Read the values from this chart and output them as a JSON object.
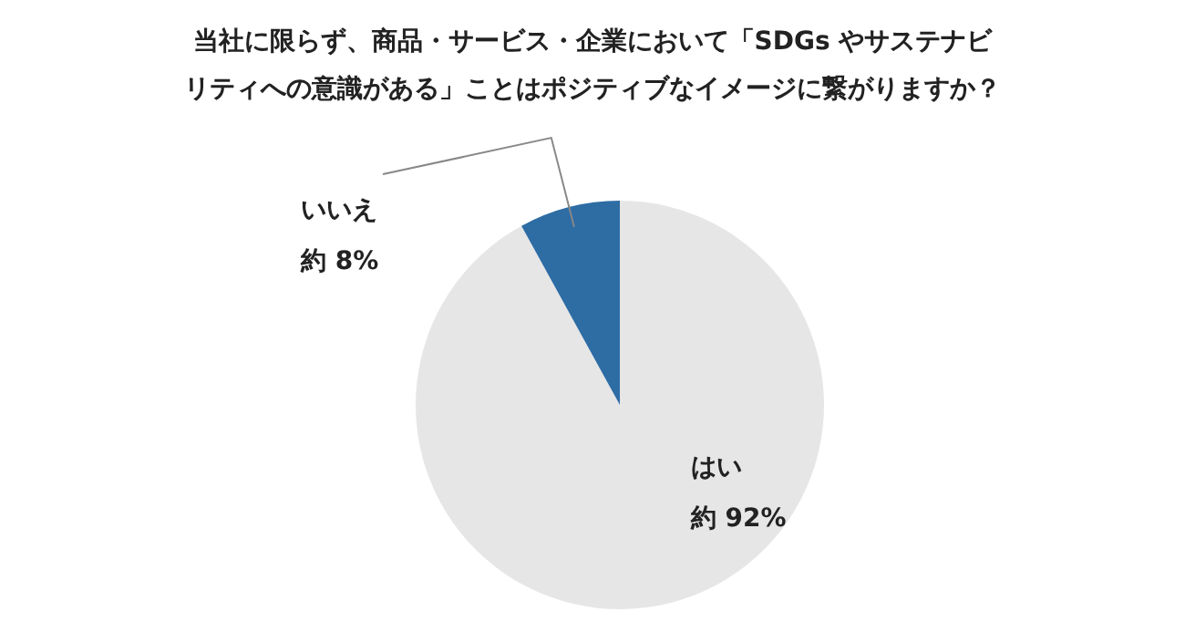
{
  "chart_data": {
    "type": "pie",
    "title": "当社に限らず、商品・サービス・企業において「SDGs やサステナビリティへの意識がある」ことはポジティブなイメージに繋がりますか？",
    "categories": [
      "はい",
      "いいえ"
    ],
    "values": [
      92,
      8
    ],
    "colors": [
      "#e6e6e6",
      "#2e6ca4"
    ],
    "value_labels": [
      "約 92%",
      "約 8%"
    ],
    "legend": false
  }
}
